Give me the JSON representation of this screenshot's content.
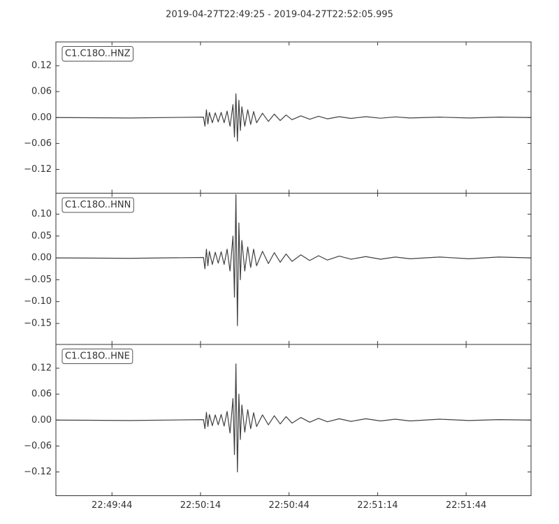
{
  "title": "2019-04-27T22:49:25  -  2019-04-27T22:52:05.995",
  "chart_data": [
    {
      "type": "line",
      "label": "C1.C18O..HNZ",
      "color": "#404040",
      "x": [
        0,
        25,
        50,
        50.5,
        51,
        51.5,
        52,
        53,
        54,
        55,
        56,
        57,
        58,
        59,
        60,
        60.5,
        61,
        61.5,
        62,
        62.5,
        63,
        64,
        65,
        66,
        67,
        68,
        70,
        72,
        74,
        76,
        78,
        80,
        83,
        86,
        89,
        92,
        96,
        100,
        105,
        110,
        115,
        120,
        130,
        140,
        150,
        160.995
      ],
      "values": [
        0,
        -0.001,
        0.001,
        -0.02,
        0.018,
        -0.015,
        0.012,
        -0.012,
        0.011,
        -0.01,
        0.012,
        -0.012,
        0.015,
        -0.02,
        0.03,
        -0.045,
        0.055,
        -0.055,
        0.04,
        -0.03,
        0.025,
        -0.02,
        0.018,
        -0.016,
        0.014,
        -0.012,
        0.01,
        -0.009,
        0.008,
        -0.007,
        0.006,
        -0.005,
        0.004,
        -0.004,
        0.003,
        -0.003,
        0.002,
        -0.002,
        0.002,
        -0.0015,
        0.0015,
        -0.001,
        0.001,
        -0.001,
        0.001,
        0
      ],
      "xlim": [
        0,
        160.995
      ],
      "ylim": [
        -0.175,
        0.175
      ],
      "yticks": [
        {
          "value": 0.12,
          "label": "0.12"
        },
        {
          "value": 0.06,
          "label": "0.06"
        },
        {
          "value": 0,
          "label": "0.00"
        },
        {
          "value": -0.06,
          "label": "−0.06"
        },
        {
          "value": -0.12,
          "label": "−0.12"
        }
      ]
    },
    {
      "type": "line",
      "label": "C1.C18O..HNN",
      "color": "#404040",
      "x": [
        0,
        25,
        50,
        50.5,
        51,
        51.5,
        52,
        53,
        54,
        55,
        56,
        57,
        58,
        59,
        60,
        60.5,
        61,
        61.5,
        62,
        62.5,
        63,
        64,
        65,
        66,
        67,
        68,
        70,
        72,
        74,
        76,
        78,
        80,
        83,
        86,
        89,
        92,
        96,
        100,
        105,
        110,
        115,
        120,
        130,
        140,
        150,
        160.995
      ],
      "values": [
        0,
        -0.001,
        0.001,
        -0.025,
        0.02,
        -0.018,
        0.015,
        -0.015,
        0.013,
        -0.012,
        0.014,
        -0.015,
        0.02,
        -0.03,
        0.05,
        -0.09,
        0.145,
        -0.155,
        0.08,
        -0.05,
        0.04,
        -0.03,
        0.025,
        -0.022,
        0.02,
        -0.018,
        0.015,
        -0.013,
        0.012,
        -0.01,
        0.009,
        -0.008,
        0.007,
        -0.006,
        0.005,
        -0.005,
        0.004,
        -0.003,
        0.003,
        -0.003,
        0.002,
        -0.002,
        0.002,
        -0.002,
        0.002,
        0
      ],
      "xlim": [
        0,
        160.995
      ],
      "ylim": [
        -0.198,
        0.148
      ],
      "yticks": [
        {
          "value": 0.1,
          "label": "0.10"
        },
        {
          "value": 0.05,
          "label": "0.05"
        },
        {
          "value": 0,
          "label": "0.00"
        },
        {
          "value": -0.05,
          "label": "−0.05"
        },
        {
          "value": -0.1,
          "label": "−0.10"
        },
        {
          "value": -0.15,
          "label": "−0.15"
        }
      ]
    },
    {
      "type": "line",
      "label": "C1.C18O..HNE",
      "color": "#404040",
      "x": [
        0,
        25,
        50,
        50.5,
        51,
        51.5,
        52,
        53,
        54,
        55,
        56,
        57,
        58,
        59,
        60,
        60.5,
        61,
        61.5,
        62,
        62.5,
        63,
        64,
        65,
        66,
        67,
        68,
        70,
        72,
        74,
        76,
        78,
        80,
        83,
        86,
        89,
        92,
        96,
        100,
        105,
        110,
        115,
        120,
        130,
        140,
        150,
        160.995
      ],
      "values": [
        0,
        -0.001,
        0.001,
        -0.02,
        0.018,
        -0.015,
        0.013,
        -0.013,
        0.012,
        -0.011,
        0.013,
        -0.014,
        0.02,
        -0.03,
        0.05,
        -0.08,
        0.13,
        -0.12,
        0.06,
        -0.045,
        0.035,
        -0.028,
        0.024,
        -0.02,
        0.017,
        -0.015,
        0.012,
        -0.011,
        0.01,
        -0.009,
        0.008,
        -0.007,
        0.006,
        -0.005,
        0.004,
        -0.004,
        0.003,
        -0.003,
        0.003,
        -0.002,
        0.002,
        -0.002,
        0.002,
        -0.001,
        0.001,
        0
      ],
      "xlim": [
        0,
        160.995
      ],
      "ylim": [
        -0.175,
        0.175
      ],
      "yticks": [
        {
          "value": 0.12,
          "label": "0.12"
        },
        {
          "value": 0.06,
          "label": "0.06"
        },
        {
          "value": 0,
          "label": "0.00"
        },
        {
          "value": -0.06,
          "label": "−0.06"
        },
        {
          "value": -0.12,
          "label": "−0.12"
        }
      ],
      "xticks": [
        {
          "value": 19,
          "label": "22:49:44"
        },
        {
          "value": 49,
          "label": "22:50:14"
        },
        {
          "value": 79,
          "label": "22:50:44"
        },
        {
          "value": 109,
          "label": "22:51:14"
        },
        {
          "value": 139,
          "label": "22:51:44"
        }
      ]
    }
  ]
}
